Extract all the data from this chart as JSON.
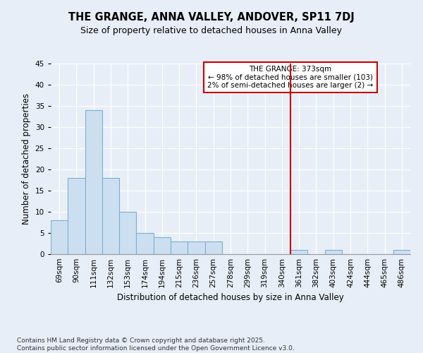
{
  "title": "THE GRANGE, ANNA VALLEY, ANDOVER, SP11 7DJ",
  "subtitle": "Size of property relative to detached houses in Anna Valley",
  "xlabel": "Distribution of detached houses by size in Anna Valley",
  "ylabel": "Number of detached properties",
  "categories": [
    "69sqm",
    "90sqm",
    "111sqm",
    "132sqm",
    "153sqm",
    "174sqm",
    "194sqm",
    "215sqm",
    "236sqm",
    "257sqm",
    "278sqm",
    "299sqm",
    "319sqm",
    "340sqm",
    "361sqm",
    "382sqm",
    "403sqm",
    "424sqm",
    "444sqm",
    "465sqm",
    "486sqm"
  ],
  "values": [
    8,
    18,
    34,
    18,
    10,
    5,
    4,
    3,
    3,
    3,
    0,
    0,
    0,
    0,
    1,
    0,
    1,
    0,
    0,
    0,
    1
  ],
  "bar_color": "#ccdff0",
  "bar_edge_color": "#7bafd4",
  "ylim": [
    0,
    45
  ],
  "yticks": [
    0,
    5,
    10,
    15,
    20,
    25,
    30,
    35,
    40,
    45
  ],
  "vline_x_index": 14,
  "vline_color": "#cc0000",
  "annotation_title": "THE GRANGE: 373sqm",
  "annotation_line1": "← 98% of detached houses are smaller (103)",
  "annotation_line2": "2% of semi-detached houses are larger (2) →",
  "annotation_box_color": "#cc0000",
  "annotation_bg": "#ffffff",
  "background_color": "#e8eef8",
  "plot_bg_color": "#e8eef8",
  "footer_line1": "Contains HM Land Registry data © Crown copyright and database right 2025.",
  "footer_line2": "Contains public sector information licensed under the Open Government Licence v3.0.",
  "title_fontsize": 10.5,
  "subtitle_fontsize": 9,
  "tick_fontsize": 7.5,
  "label_fontsize": 8.5,
  "annotation_fontsize": 7.5,
  "footer_fontsize": 6.5
}
